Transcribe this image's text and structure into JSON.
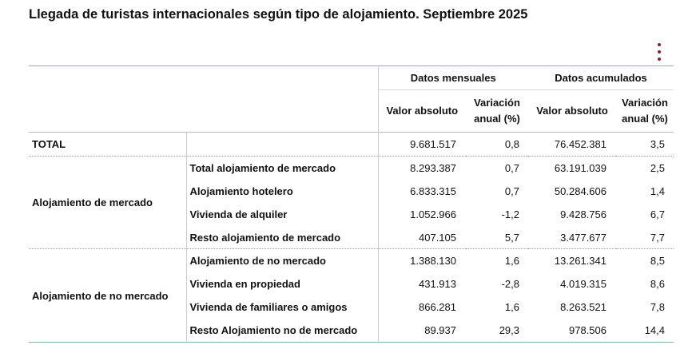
{
  "title": "Llegada de turistas internacionales según tipo de alojamiento. Septiembre 2025",
  "menu_icon": "kebab-menu-icon",
  "accent_color": "#8a1f3a",
  "header": {
    "group_mensual": "Datos mensuales",
    "group_acumulado": "Datos acumulados",
    "col_valor": "Valor absoluto",
    "col_variacion_1": "Variación",
    "col_variacion_2": "anual (%)"
  },
  "total": {
    "label": "TOTAL",
    "m_abs": "9.681.517",
    "m_var": "0,8",
    "a_abs": "76.452.381",
    "a_var": "3,5"
  },
  "groups": [
    {
      "label": "Alojamiento de mercado",
      "rows": [
        {
          "label": "Total alojamiento de mercado",
          "m_abs": "8.293.387",
          "m_var": "0,7",
          "a_abs": "63.191.039",
          "a_var": "2,5"
        },
        {
          "label": "Alojamiento hotelero",
          "m_abs": "6.833.315",
          "m_var": "0,7",
          "a_abs": "50.284.606",
          "a_var": "1,4"
        },
        {
          "label": "Vivienda de alquiler",
          "m_abs": "1.052.966",
          "m_var": "-1,2",
          "a_abs": "9.428.756",
          "a_var": "6,7"
        },
        {
          "label": "Resto alojamiento de mercado",
          "m_abs": "407.105",
          "m_var": "5,7",
          "a_abs": "3.477.677",
          "a_var": "7,7"
        }
      ]
    },
    {
      "label": "Alojamiento de no mercado",
      "rows": [
        {
          "label": "Alojamiento de no mercado",
          "m_abs": "1.388.130",
          "m_var": "1,6",
          "a_abs": "13.261.341",
          "a_var": "8,5"
        },
        {
          "label": "Vivienda en propiedad",
          "m_abs": "431.913",
          "m_var": "-2,8",
          "a_abs": "4.019.315",
          "a_var": "8,6"
        },
        {
          "label": "Vivienda de familiares o amigos",
          "m_abs": "866.281",
          "m_var": "1,6",
          "a_abs": "8.263.521",
          "a_var": "7,8"
        },
        {
          "label": "Resto Alojamiento no de mercado",
          "m_abs": "89.937",
          "m_var": "29,3",
          "a_abs": "978.506",
          "a_var": "14,4"
        }
      ]
    }
  ]
}
